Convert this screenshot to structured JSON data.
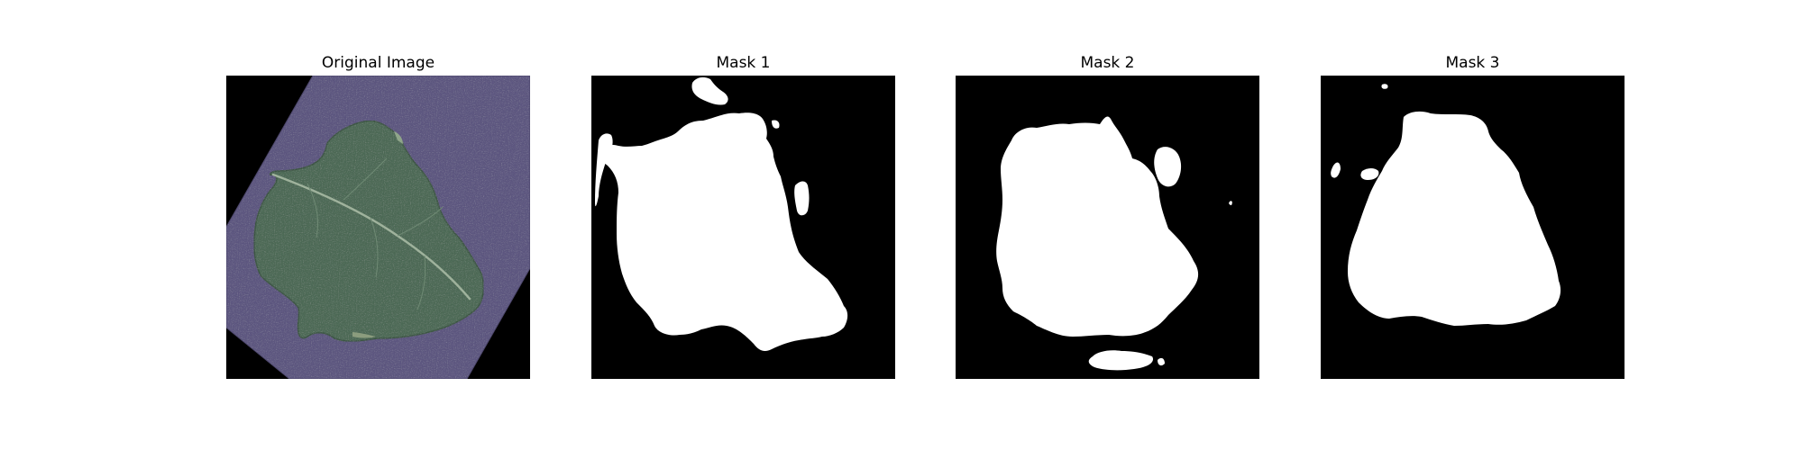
{
  "figure": {
    "panels": [
      {
        "title": "Original Image",
        "kind": "photo",
        "subject": "leaf-on-purple-paper"
      },
      {
        "title": "Mask 1",
        "kind": "binary-mask"
      },
      {
        "title": "Mask 2",
        "kind": "binary-mask"
      },
      {
        "title": "Mask 3",
        "kind": "binary-mask"
      }
    ]
  },
  "colors": {
    "background": "#000000",
    "mask_fill": "#ffffff",
    "paper": "#5a5478",
    "paper_light": "#6b6690",
    "leaf": "#4f6b57",
    "leaf_dark": "#3f5a48",
    "leaf_vein": "#a9b8a6",
    "page_bg": "#ffffff"
  }
}
